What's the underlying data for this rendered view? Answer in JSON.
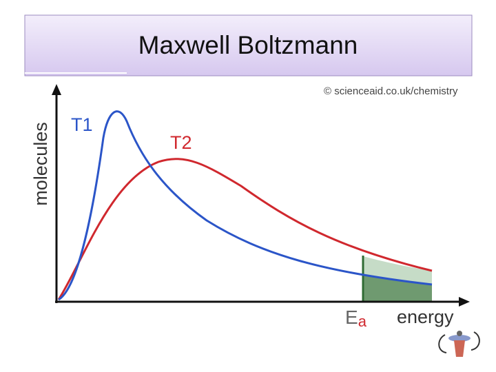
{
  "header": {
    "title": "Maxwell Boltzmann"
  },
  "diagram": {
    "credit": "© scienceaid.co.uk/chemistry",
    "y_label": "molecules",
    "x_label": "energy",
    "curves": [
      {
        "label": "T1"
      },
      {
        "label": "T2"
      }
    ],
    "threshold": {
      "main": "E",
      "sub": "a"
    }
  }
}
